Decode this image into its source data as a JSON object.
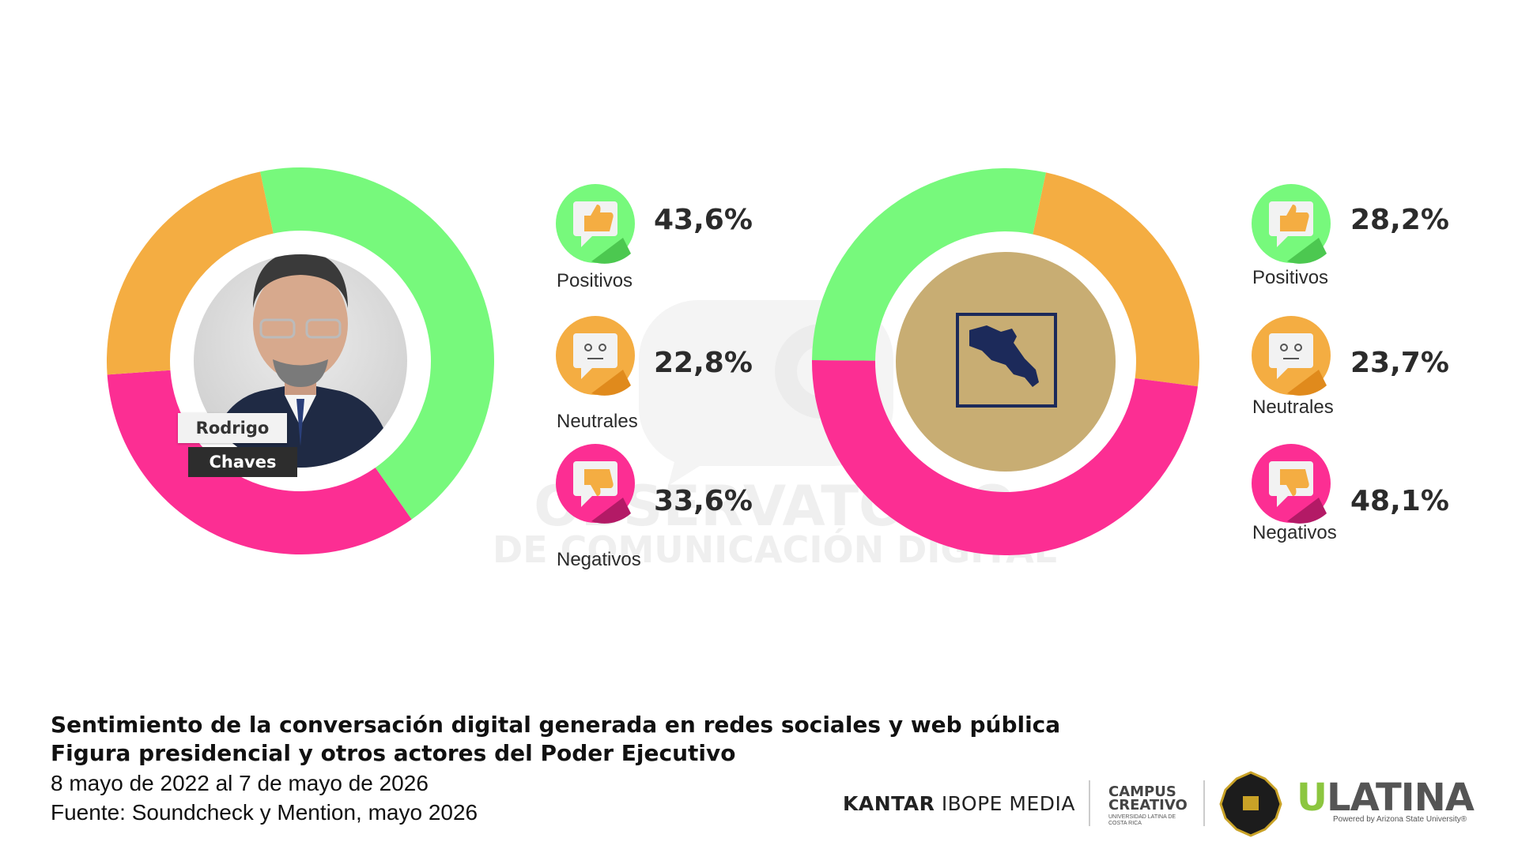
{
  "watermark": {
    "line1": "OBSERVATORIO",
    "line2": "DE COMUNICACIÓN DIGITAL"
  },
  "chart_data": [
    {
      "type": "donut",
      "center_label": [
        "Rodrigo",
        "Chaves"
      ],
      "categories": [
        "Positivos",
        "Neutrales",
        "Negativos"
      ],
      "values": [
        43.6,
        22.8,
        33.6
      ],
      "value_labels": [
        "43,6%",
        "22,8%",
        "33,6%"
      ],
      "colors": [
        "#77f97c",
        "#f4ad42",
        "#fc2e93"
      ],
      "legend_placement": "right"
    },
    {
      "type": "donut",
      "categories": [
        "Positivos",
        "Neutrales",
        "Negativos"
      ],
      "values": [
        28.2,
        23.7,
        48.1
      ],
      "value_labels": [
        "28,2%",
        "23,7%",
        "48,1%"
      ],
      "colors": [
        "#77f97c",
        "#f4ad42",
        "#fc2e93"
      ],
      "legend_placement": "right"
    }
  ],
  "icons": {
    "positive": "thumbs-up-speech-bubble",
    "neutral": "neutral-face-speech-bubble",
    "negative": "thumbs-down-speech-bubble"
  },
  "caption": {
    "title1": "Sentimiento de la conversación digital generada en redes sociales y web pública",
    "title2": "Figura presidencial y otros actores del Poder Ejecutivo",
    "dates": "8 mayo de 2022 al 7 de mayo de 2026",
    "source": "Fuente: Soundcheck y Mention, mayo 2026"
  },
  "logos": {
    "kantar_bold": "KANTAR",
    "kantar_rest": "IBOPE MEDIA",
    "campus_line1": "CAMPUS",
    "campus_line2": "CREATIVO",
    "campus_sub": "UNIVERSIDAD LATINA DE COSTA RICA",
    "ulatina_u": "U",
    "ulatina_rest": "LATINA",
    "ulatina_powered": "Powered by Arizona State University®"
  }
}
